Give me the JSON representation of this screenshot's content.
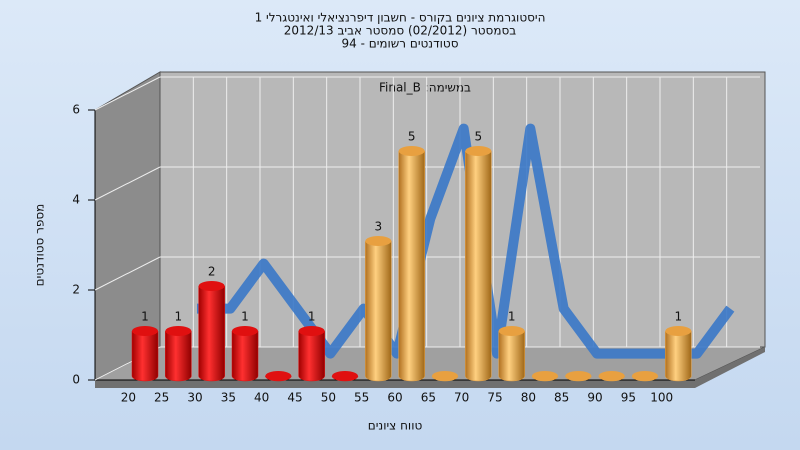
{
  "chart_data": {
    "type": "bar3d",
    "title_lines": [
      "היסטוגרמת ציונים בקורס - חשבון דיפרנציאלי ואינטגרלי 1",
      "בסמסטר (02/2012) סמסטר אביב 2012/13",
      "סטודנטים רשומים - 94"
    ],
    "annotation": "במשימה: Final_B",
    "x_label": "טווח ציונים",
    "y_label": "מספר סטודנטים",
    "categories": [
      "20",
      "25",
      "30",
      "35",
      "40",
      "45",
      "50",
      "55",
      "60",
      "65",
      "70",
      "75",
      "80",
      "85",
      "90",
      "95",
      "100"
    ],
    "values": [
      1,
      1,
      2,
      1,
      0,
      1,
      0,
      3,
      5,
      0,
      5,
      1,
      0,
      0,
      0,
      0,
      1
    ],
    "colors": [
      "#e01010",
      "#e01010",
      "#e01010",
      "#e01010",
      "#e01010",
      "#e01010",
      "#e01010",
      "#e8a040",
      "#e8a040",
      "#e8a040",
      "#e8a040",
      "#e8a040",
      "#e8a040",
      "#e8a040",
      "#e8a040",
      "#e8a040",
      "#e8a040"
    ],
    "line_color": "#3a78c8",
    "ylim": [
      0,
      6
    ],
    "yticks": [
      0,
      2,
      4,
      6
    ],
    "grid": true
  }
}
